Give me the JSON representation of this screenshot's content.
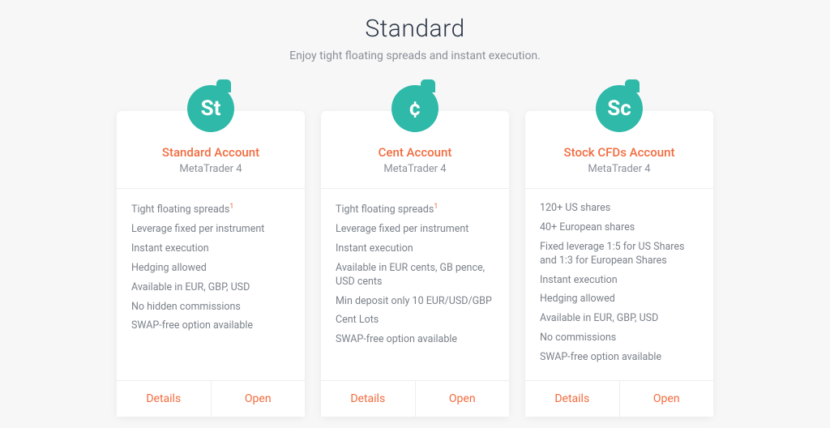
{
  "header": {
    "title": "Standard",
    "subtitle": "Enjoy tight floating spreads and instant execution."
  },
  "colors": {
    "accent": "#f26b3e",
    "badge": "#2fb9a9",
    "background": "#f7f7f7",
    "card_bg": "#ffffff",
    "text_muted": "#8a8f98",
    "heading": "#2d3748"
  },
  "cards": [
    {
      "badge": "St",
      "title": "Standard Account",
      "subtitle": "MetaTrader 4",
      "features": [
        {
          "text": "Tight floating spreads",
          "sup": "1"
        },
        {
          "text": "Leverage fixed per instrument"
        },
        {
          "text": "Instant execution"
        },
        {
          "text": "Hedging allowed"
        },
        {
          "text": "Available in EUR, GBP, USD"
        },
        {
          "text": "No hidden commissions"
        },
        {
          "text": "SWAP-free option available"
        }
      ],
      "details_label": "Details",
      "open_label": "Open"
    },
    {
      "badge": "¢",
      "title": "Cent Account",
      "subtitle": "MetaTrader 4",
      "features": [
        {
          "text": "Tight floating spreads",
          "sup": "1"
        },
        {
          "text": "Leverage fixed per instrument"
        },
        {
          "text": "Instant execution"
        },
        {
          "text": "Available in EUR cents, GB pence, USD cents"
        },
        {
          "text": "Min deposit only 10 EUR/USD/GBP"
        },
        {
          "text": "Cent Lots"
        },
        {
          "text": "SWAP-free option available"
        }
      ],
      "details_label": "Details",
      "open_label": "Open"
    },
    {
      "badge": "Sc",
      "title": "Stock CFDs Account",
      "subtitle": "MetaTrader 4",
      "features": [
        {
          "text": "120+ US shares"
        },
        {
          "text": "40+ European shares"
        },
        {
          "text": "Fixed leverage 1:5 for US Shares and 1:3 for European Shares"
        },
        {
          "text": "Instant execution"
        },
        {
          "text": "Hedging allowed"
        },
        {
          "text": "Available in EUR, GBP, USD"
        },
        {
          "text": "No commissions"
        },
        {
          "text": "SWAP-free option available"
        }
      ],
      "details_label": "Details",
      "open_label": "Open"
    }
  ]
}
